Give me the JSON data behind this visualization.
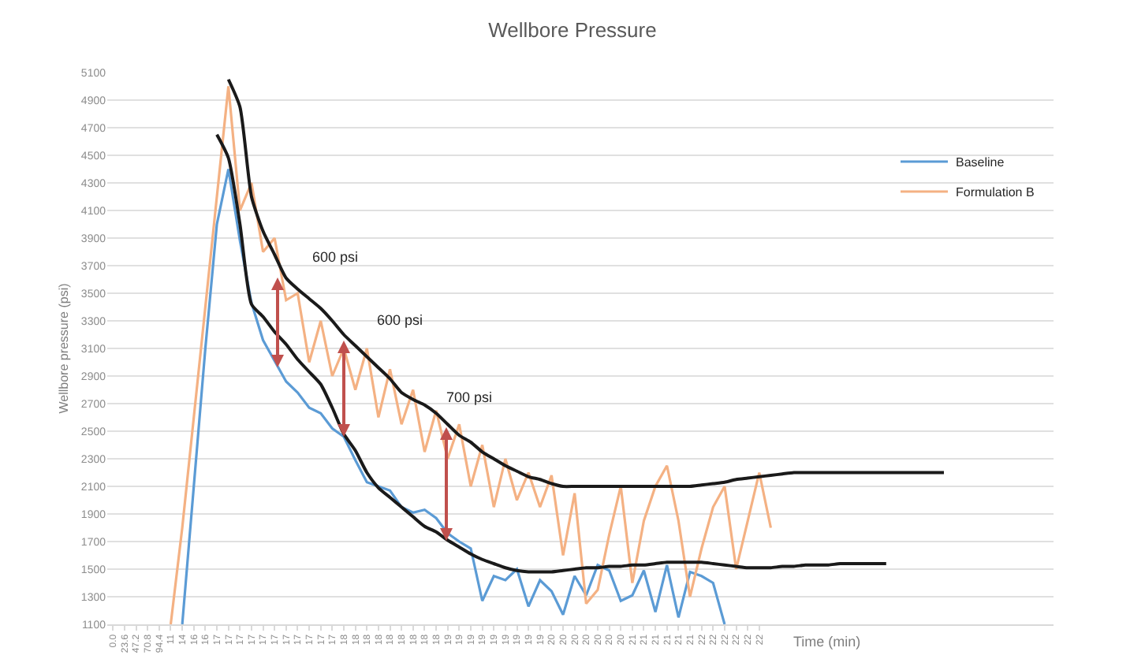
{
  "chart_data": {
    "type": "line",
    "title": "Wellbore Pressure",
    "xlabel": "Time (min)",
    "ylabel": "Wellbore pressure (psi)",
    "categories": [
      "0.0",
      "23.6",
      "47.2",
      "70.8",
      "94.4",
      "11",
      "14",
      "16",
      "16",
      "17",
      "17",
      "17",
      "17",
      "17",
      "17",
      "17",
      "17",
      "17",
      "17",
      "17",
      "18",
      "18",
      "18",
      "18",
      "18",
      "18",
      "18",
      "18",
      "18",
      "19",
      "19",
      "19",
      "19",
      "19",
      "19",
      "19",
      "19",
      "19",
      "20",
      "20",
      "20",
      "20",
      "20",
      "20",
      "20",
      "21",
      "21",
      "21",
      "21",
      "21",
      "21",
      "22",
      "22",
      "22",
      "22",
      "22",
      "22",
      null,
      null,
      null,
      null,
      null,
      null,
      null,
      null,
      null,
      null,
      null,
      null,
      null,
      null,
      null,
      null,
      null,
      null,
      null,
      null,
      null,
      null,
      null,
      null,
      null
    ],
    "ylim": [
      1100,
      5100
    ],
    "yticks": [
      1100,
      1300,
      1500,
      1700,
      1900,
      2100,
      2300,
      2500,
      2700,
      2900,
      3100,
      3300,
      3500,
      3700,
      3900,
      4100,
      4300,
      4500,
      4700,
      4900,
      5100
    ],
    "grid": "y",
    "legend": "top right",
    "marker": "none",
    "series": [
      {
        "name": "Baseline",
        "color": "#5b9bd5",
        "values": [
          null,
          null,
          null,
          null,
          null,
          null,
          1100,
          2100,
          3100,
          4000,
          4400,
          3880,
          3430,
          3160,
          3010,
          2860,
          2780,
          2670,
          2630,
          2520,
          2460,
          2290,
          2130,
          2100,
          2070,
          1950,
          1910,
          1930,
          1870,
          1760,
          1700,
          1650,
          1270,
          1450,
          1420,
          1500,
          1230,
          1420,
          1340,
          1170,
          1450,
          1310,
          1530,
          1490,
          1270,
          1310,
          1490,
          1190,
          1530,
          1150,
          1480,
          1450,
          1400,
          1100,
          null,
          null,
          null,
          null,
          null,
          null,
          null,
          null,
          null,
          null,
          null,
          null,
          null,
          null,
          null,
          null,
          null,
          null,
          null,
          null,
          null,
          null,
          null,
          null,
          null,
          null,
          null,
          null
        ]
      },
      {
        "name": "Formulation B",
        "color": "#f4b183",
        "values": [
          null,
          null,
          null,
          null,
          null,
          1100,
          1800,
          2600,
          3400,
          4200,
          5000,
          4100,
          4300,
          3800,
          3900,
          3450,
          3500,
          3000,
          3300,
          2900,
          3100,
          2800,
          3100,
          2600,
          2950,
          2550,
          2800,
          2350,
          2650,
          2300,
          2550,
          2100,
          2400,
          1950,
          2300,
          2000,
          2200,
          1950,
          2180,
          1600,
          2050,
          1250,
          1350,
          1750,
          2100,
          1400,
          1850,
          2100,
          2250,
          1850,
          1300,
          1650,
          1950,
          2100,
          1500,
          1850,
          2200,
          1800,
          null,
          null,
          null,
          null,
          null,
          null,
          null,
          null,
          null,
          null,
          null,
          null,
          null,
          null,
          null,
          null,
          null,
          null,
          null,
          null,
          null,
          null,
          null,
          null
        ]
      },
      {
        "color": "#1a1a1a",
        "values": [
          null,
          null,
          null,
          null,
          null,
          null,
          null,
          null,
          null,
          null,
          5050,
          4850,
          4200,
          3950,
          3780,
          3610,
          3530,
          3460,
          3390,
          3300,
          3200,
          3120,
          3040,
          2960,
          2880,
          2780,
          2730,
          2690,
          2630,
          2550,
          2470,
          2420,
          2350,
          2300,
          2250,
          2210,
          2170,
          2150,
          2120,
          2100,
          2100,
          2100,
          2100,
          2100,
          2100,
          2100,
          2100,
          2100,
          2100,
          2100,
          2100,
          2110,
          2120,
          2130,
          2150,
          2160,
          2170,
          2180,
          2190,
          2200,
          2200,
          2200,
          2200,
          2200,
          2200,
          2200,
          2200,
          2200,
          2200,
          2200,
          2200,
          2200,
          2200,
          null,
          null,
          null,
          null,
          null,
          null,
          null,
          null,
          null
        ]
      },
      {
        "color": "#1a1a1a",
        "values": [
          null,
          null,
          null,
          null,
          null,
          null,
          null,
          null,
          null,
          4650,
          4480,
          4000,
          3420,
          3330,
          3220,
          3130,
          3020,
          2930,
          2840,
          2670,
          2480,
          2360,
          2200,
          2090,
          2020,
          1950,
          1880,
          1810,
          1770,
          1710,
          1660,
          1610,
          1570,
          1540,
          1510,
          1490,
          1480,
          1480,
          1480,
          1490,
          1500,
          1510,
          1510,
          1520,
          1520,
          1530,
          1530,
          1540,
          1550,
          1550,
          1550,
          1550,
          1540,
          1530,
          1520,
          1510,
          1510,
          1510,
          1520,
          1520,
          1530,
          1530,
          1530,
          1540,
          1540,
          1540,
          1540,
          1540,
          null,
          null,
          null,
          null,
          null,
          null,
          null,
          null,
          null,
          null,
          null,
          null,
          null,
          null
        ]
      }
    ],
    "annotations": [
      "600 psi",
      "600 psi",
      "700 psi"
    ]
  }
}
